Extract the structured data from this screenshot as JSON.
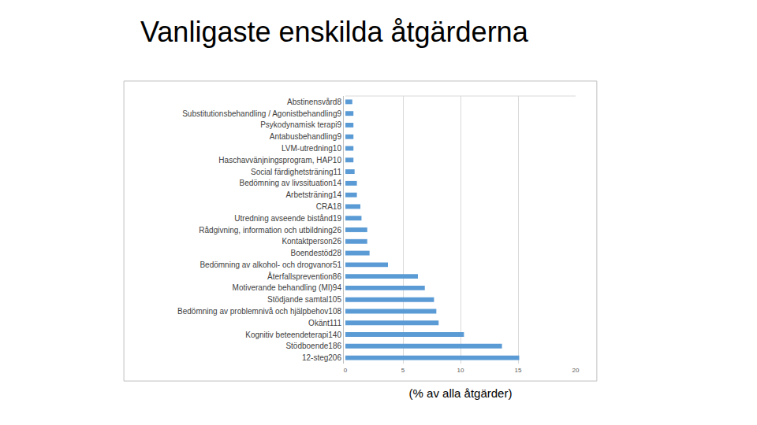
{
  "chart_data": {
    "type": "bar",
    "orientation": "horizontal",
    "title": "Vanligaste enskilda åtgärderna",
    "xlabel": "(% av alla åtgärder)",
    "categories": [
      "Abstinensvård8",
      "Substitutionsbehandling / Agonistbehandling9",
      "Psykodynamisk terapi9",
      "Antabusbehandling9",
      "LVM-utredning10",
      "Haschavvänjningsprogram, HAP10",
      "Social färdighetsträning11",
      "Bedömning av livssituation14",
      "Arbetsträning14",
      "CRA18",
      "Utredning avseende bistånd19",
      "Rådgivning, information och utbildning26",
      "Kontaktperson26",
      "Boendestöd28",
      "Bedömning av alkohol- och drogvanor51",
      "Återfallsprevention86",
      "Motiverande behandling (MI)94",
      "Stödjande samtal105",
      "Bedömning av problemnivå och hjälpbehov108",
      "Okänt111",
      "Kognitiv beteendeterapi140",
      "Stödboende186",
      "12-steg206"
    ],
    "values": [
      0.6,
      0.7,
      0.7,
      0.7,
      0.7,
      0.7,
      0.8,
      1.0,
      1.0,
      1.3,
      1.4,
      1.9,
      1.9,
      2.1,
      3.7,
      6.3,
      6.9,
      7.7,
      7.9,
      8.1,
      10.3,
      13.6,
      15.1
    ],
    "color": "#5b9bd5",
    "xlim": [
      0,
      20
    ],
    "xticks": [
      0,
      5,
      10,
      15,
      20
    ],
    "grid": true
  }
}
